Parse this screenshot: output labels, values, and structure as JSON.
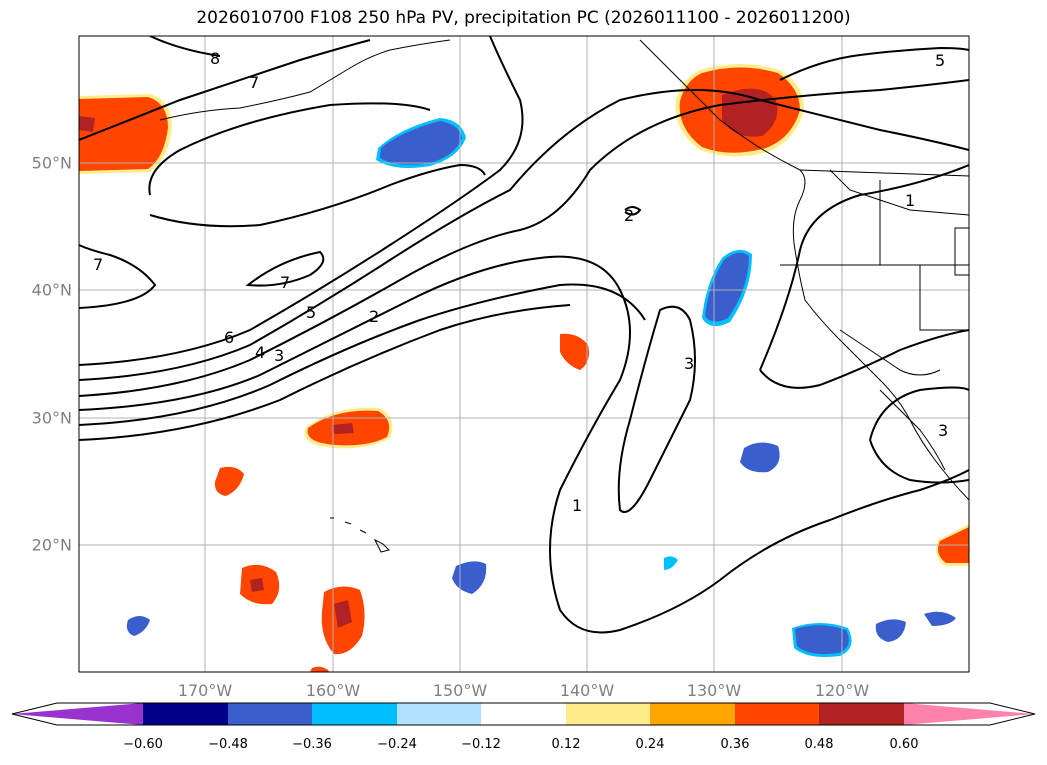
{
  "title": "2026010700 F108 250 hPa PV, precipitation PC (2026011100 - 2026011200)",
  "map": {
    "lon_range": [
      -180,
      -110
    ],
    "lat_range": [
      10,
      60
    ],
    "lon_labels": [
      "170°W",
      "160°W",
      "150°W",
      "140°W",
      "130°W",
      "120°W"
    ],
    "lat_labels": [
      "50°N",
      "40°N",
      "30°N",
      "20°N"
    ],
    "gridlines": true,
    "contour_labels": [
      "8",
      "7",
      "7",
      "7",
      "6",
      "5",
      "4",
      "3",
      "2",
      "2",
      "1",
      "3",
      "5",
      "1",
      "3"
    ]
  },
  "colorbar": {
    "tick_labels": [
      "−0.60",
      "−0.48",
      "−0.36",
      "−0.24",
      "−0.12",
      "0.12",
      "0.24",
      "0.36",
      "0.48",
      "0.60"
    ],
    "colors": [
      "#9a32cd",
      "#00008b",
      "#3a5fcd",
      "#00bfff",
      "#b0e2ff",
      "#ffffff",
      "#ffec8b",
      "#ffa500",
      "#ff4500",
      "#b22222",
      "#ff82ab"
    ],
    "extend": "both"
  }
}
